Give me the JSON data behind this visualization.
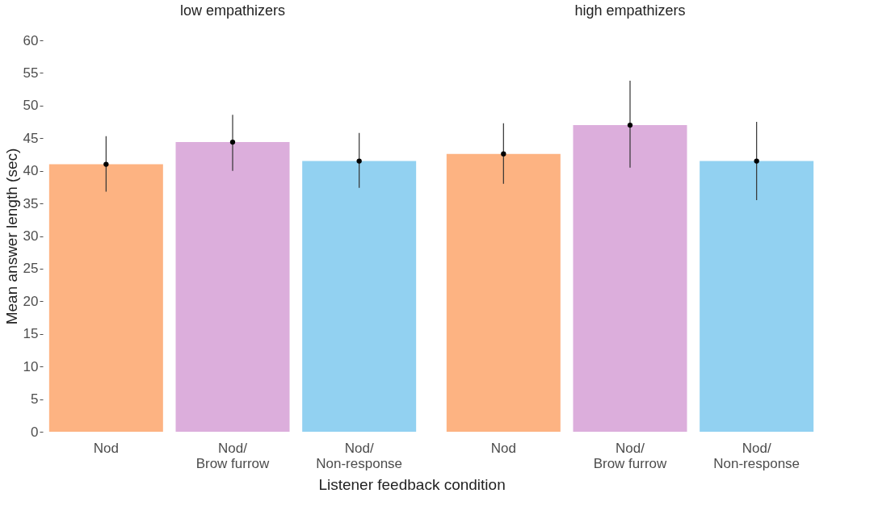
{
  "chart_data": [
    {
      "type": "bar",
      "title": "low empathizers",
      "ylabel": "Mean answer length (sec)",
      "xlabel": "Listener feedback condition",
      "categories": [
        "Nod",
        "Nod/\nBrow furrow",
        "Nod/\nNon-response"
      ],
      "ylim": [
        0,
        60
      ],
      "yticks": [
        0,
        5,
        10,
        15,
        20,
        25,
        30,
        35,
        40,
        45,
        50,
        55,
        60
      ],
      "grid": false,
      "series": [
        {
          "values": [
            41.0,
            44.4,
            41.5
          ],
          "colors": [
            "#fdb382",
            "#dcaedc",
            "#92d1f1"
          ]
        },
        {
          "type": "scatter",
          "values": [
            41.0,
            44.4,
            41.5
          ],
          "color": "#000000",
          "marker": "circle",
          "errors": [
            [
              36.8,
              45.3
            ],
            [
              40.0,
              48.6
            ],
            [
              37.4,
              45.8
            ]
          ]
        }
      ]
    },
    {
      "type": "bar",
      "title": "high empathizers",
      "categories": [
        "Nod",
        "Nod/\nBrow furrow",
        "Nod/\nNon-response"
      ],
      "ylim": [
        0,
        60
      ],
      "yticks": [
        0,
        5,
        10,
        15,
        20,
        25,
        30,
        35,
        40,
        45,
        50,
        55,
        60
      ],
      "grid": false,
      "tick_labels": "x",
      "series": [
        {
          "values": [
            42.6,
            47.0,
            41.5
          ],
          "colors": [
            "#fdb382",
            "#dcaedc",
            "#92d1f1"
          ]
        },
        {
          "type": "scatter",
          "values": [
            42.6,
            47.0,
            41.5
          ],
          "color": "#000000",
          "marker": "circle",
          "errors": [
            [
              38.0,
              47.3
            ],
            [
              40.5,
              53.8
            ],
            [
              35.5,
              47.5
            ]
          ]
        }
      ]
    }
  ]
}
